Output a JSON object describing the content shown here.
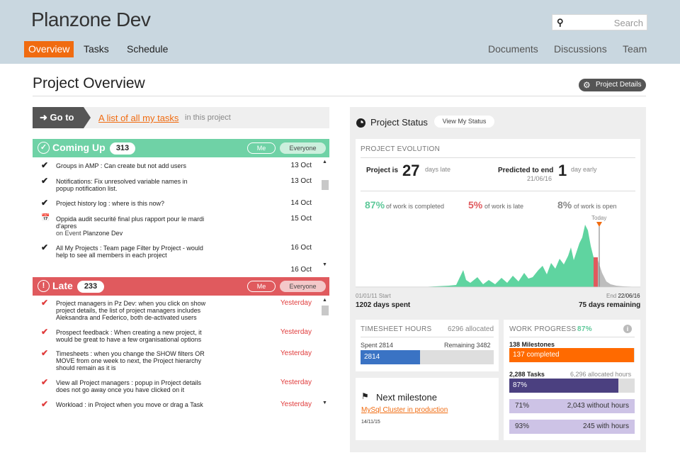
{
  "header": {
    "app_title": "Planzone Dev",
    "search_placeholder": "Search",
    "nav_left": [
      "Overview",
      "Tasks",
      "Schedule"
    ],
    "nav_right": [
      "Documents",
      "Discussions",
      "Team"
    ]
  },
  "page": {
    "title": "Project Overview",
    "project_details_label": "Project Details"
  },
  "goto": {
    "button_label": "Go to",
    "link_text": "A list of all my tasks",
    "suffix": "in this project"
  },
  "coming_up": {
    "title": "Coming Up",
    "count": "313",
    "filter_me": "Me",
    "filter_everyone": "Everyone",
    "tasks": [
      {
        "lines": [
          "Groups in AMP : Can create but not add users"
        ],
        "date": "13 Oct",
        "icon": "check"
      },
      {
        "lines": [
          "Notifications: Fix unresolved variable names in",
          "popup notification list."
        ],
        "date": "13 Oct",
        "icon": "check"
      },
      {
        "lines": [
          "Project history log : where is this now?"
        ],
        "date": "14 Oct",
        "icon": "check"
      },
      {
        "lines": [
          "Oppida audit securité final plus rapport pour le mardi",
          "d'apres"
        ],
        "sub_prefix": "on Event ",
        "sub_value": "Planzone Dev",
        "date": "15 Oct",
        "icon": "calendar"
      },
      {
        "lines": [
          "All My Projects : Team page Filter by Project - would",
          "help to see all members in each project"
        ],
        "date": "16 Oct",
        "icon": "check"
      },
      {
        "lines": [
          ""
        ],
        "date": "16 Oct",
        "icon": "none"
      }
    ]
  },
  "late": {
    "title": "Late",
    "count": "233",
    "filter_me": "Me",
    "filter_everyone": "Everyone",
    "tasks": [
      {
        "lines": [
          "Project managers in Pz Dev: when you click on show",
          "project details, the list of project managers includes",
          "Aleksandra and Federico, both de-activated users"
        ],
        "date": "Yesterday"
      },
      {
        "lines": [
          "Prospect feedback : When creating a new project, it",
          "would be great to have a few organisational options"
        ],
        "date": "Yesterday"
      },
      {
        "lines": [
          "Timesheets : when you change the SHOW filters OR",
          "MOVE from one week to next, the Project hierarchy",
          "should remain as it is"
        ],
        "date": "Yesterday"
      },
      {
        "lines": [
          "View all Project managers : popup in Project details",
          "does not go away once you have clicked on it"
        ],
        "date": "Yesterday"
      },
      {
        "lines": [
          "Workload : in Project when you move or drag a Task"
        ],
        "date": "Yesterday"
      }
    ]
  },
  "status": {
    "title": "Project Status",
    "view_status_label": "View My Status",
    "evolution": {
      "caption": "PROJECT EVOLUTION",
      "project_is_label": "Project is",
      "days_late_value": "27",
      "days_late_label": "days late",
      "predicted_label": "Predicted to end",
      "predicted_date": "21/06/16",
      "days_early_value": "1",
      "days_early_label": "day early",
      "completed_pct": "87%",
      "completed_label": "of work is completed",
      "late_pct": "5%",
      "late_label": "of work is late",
      "open_pct": "8%",
      "open_label": "of work is open",
      "today_label": "Today"
    },
    "timeline": {
      "start_date": "01/01/11",
      "start_label": "Start",
      "end_label": "End",
      "end_date": "22/06/16",
      "days_spent": "1202 days spent",
      "days_remaining": "75 days remaining"
    },
    "timesheet": {
      "caption": "TIMESHEET HOURS",
      "allocated": "6296 allocated",
      "spent_label": "Spent 2814",
      "remaining_label": "Remaining 3482",
      "bar_value": "2814",
      "spent_fraction": 0.447
    },
    "milestone": {
      "title": "Next milestone",
      "link": "MySql Cluster in production",
      "date": "14/11/15"
    },
    "work_progress": {
      "caption": "WORK PROGRESS",
      "pct": "87%",
      "milestones_label": "138 Milestones",
      "milestones_bar": "137 completed",
      "milestones_fraction": 0.993,
      "tasks_label": "2,288 Tasks",
      "tasks_hours": "6,296 allocated hours",
      "tasks_bar": "87%",
      "tasks_fraction": 0.87,
      "row2_pct": "71%",
      "row2_text": "2,043 without hours",
      "row3_pct": "93%",
      "row3_text": "245 with hours"
    }
  },
  "colors": {
    "accent_orange": "#f06b10",
    "coming_up_green": "#6fd2a6",
    "late_red": "#e05a5e",
    "chart_green": "#5fd4a0",
    "timesheet_blue": "#3a73c4",
    "progress_purple": "#4b4080"
  }
}
